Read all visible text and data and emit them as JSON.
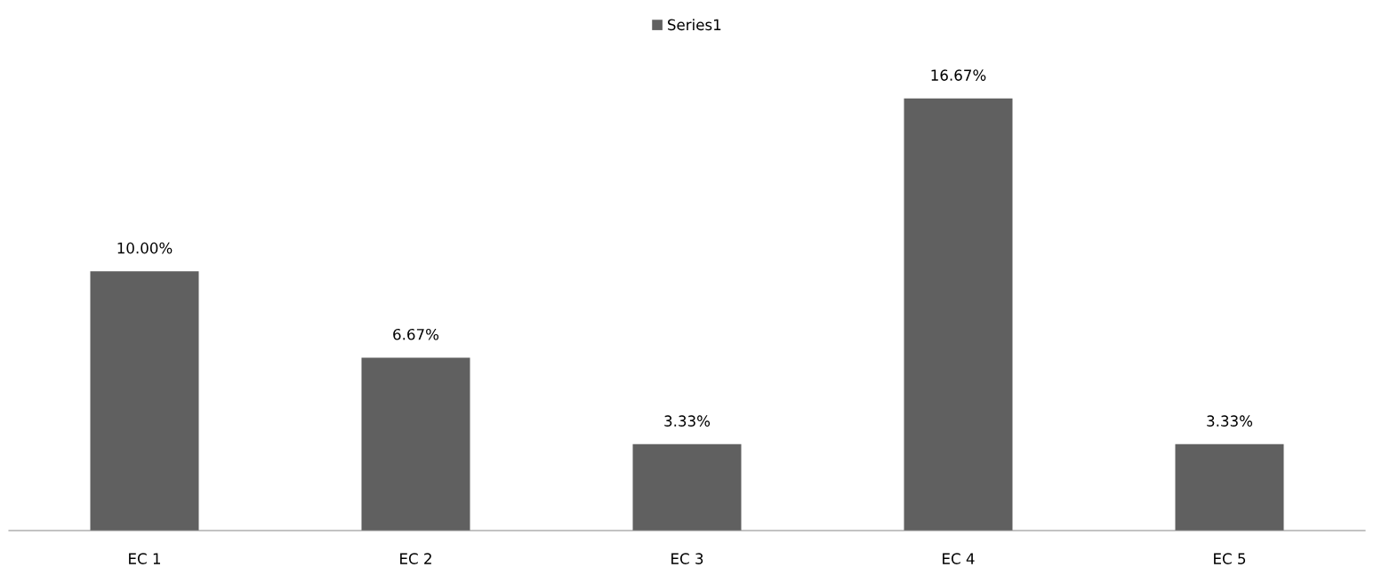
{
  "chart_data": {
    "type": "bar",
    "categories": [
      "EC 1",
      "EC 2",
      "EC 3",
      "EC 4",
      "EC 5"
    ],
    "series": [
      {
        "name": "Series1",
        "color": "#606060",
        "values": [
          10.0,
          6.67,
          3.33,
          16.67,
          3.33
        ],
        "value_labels": [
          "10.00%",
          "6.67%",
          "3.33%",
          "16.67%",
          "3.33%"
        ]
      }
    ],
    "tick_labels": "x",
    "legend": "top"
  }
}
